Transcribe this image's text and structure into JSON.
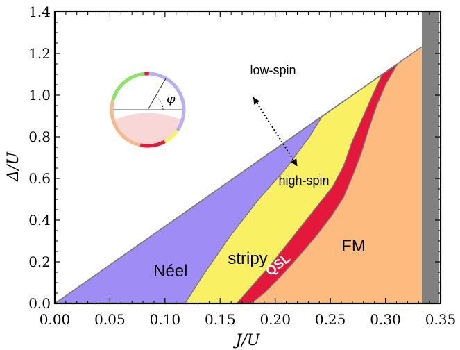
{
  "chart_data": {
    "type": "area",
    "title": "",
    "xlabel": "J/U",
    "ylabel": "Δ/U",
    "xlim": [
      0.0,
      0.35
    ],
    "ylim": [
      0.0,
      1.4
    ],
    "xticks": [
      "0.00",
      "0.05",
      "0.10",
      "0.15",
      "0.20",
      "0.25",
      "0.30",
      "0.35"
    ],
    "yticks": [
      "0.0",
      "0.2",
      "0.4",
      "0.6",
      "0.8",
      "1.0",
      "1.2",
      "1.4"
    ],
    "grid": false,
    "colors": {
      "neel": "#a08cf5",
      "stripy": "#faf064",
      "qsl": "#e3183a",
      "fm": "#fdbb80",
      "excluded": "#808080",
      "boundary": "#7a7a7a",
      "inset_green": "#8de26a",
      "inset_lavender": "#b8b0f0",
      "inset_orange": "#f8b98a",
      "inset_pink_fill": "#fad7d7"
    },
    "regions": [
      {
        "name": "Néel",
        "polygon": [
          [
            0.0,
            0.0
          ],
          [
            0.243,
            0.902
          ],
          [
            0.231,
            0.8
          ],
          [
            0.21,
            0.65
          ],
          [
            0.185,
            0.5
          ],
          [
            0.16,
            0.33
          ],
          [
            0.135,
            0.14
          ],
          [
            0.118,
            0.0
          ]
        ]
      },
      {
        "name": "stripy",
        "polygon": [
          [
            0.118,
            0.0
          ],
          [
            0.135,
            0.14
          ],
          [
            0.16,
            0.33
          ],
          [
            0.185,
            0.5
          ],
          [
            0.21,
            0.65
          ],
          [
            0.231,
            0.8
          ],
          [
            0.243,
            0.902
          ],
          [
            0.297,
            1.1
          ],
          [
            0.29,
            1.02
          ],
          [
            0.28,
            0.9
          ],
          [
            0.27,
            0.78
          ],
          [
            0.262,
            0.66
          ],
          [
            0.252,
            0.56
          ],
          [
            0.24,
            0.48
          ],
          [
            0.225,
            0.38
          ],
          [
            0.21,
            0.28
          ],
          [
            0.195,
            0.18
          ],
          [
            0.18,
            0.09
          ],
          [
            0.165,
            0.0
          ]
        ]
      },
      {
        "name": "QSL",
        "polygon": [
          [
            0.165,
            0.0
          ],
          [
            0.18,
            0.09
          ],
          [
            0.195,
            0.18
          ],
          [
            0.21,
            0.28
          ],
          [
            0.225,
            0.38
          ],
          [
            0.24,
            0.48
          ],
          [
            0.252,
            0.56
          ],
          [
            0.262,
            0.66
          ],
          [
            0.27,
            0.78
          ],
          [
            0.28,
            0.9
          ],
          [
            0.29,
            1.02
          ],
          [
            0.297,
            1.1
          ],
          [
            0.311,
            1.15
          ],
          [
            0.3,
            1.05
          ],
          [
            0.292,
            0.95
          ],
          [
            0.285,
            0.84
          ],
          [
            0.278,
            0.72
          ],
          [
            0.27,
            0.61
          ],
          [
            0.262,
            0.51
          ],
          [
            0.251,
            0.42
          ],
          [
            0.238,
            0.33
          ],
          [
            0.222,
            0.23
          ],
          [
            0.205,
            0.13
          ],
          [
            0.19,
            0.05
          ],
          [
            0.178,
            0.0
          ]
        ]
      },
      {
        "name": "FM",
        "polygon": [
          [
            0.178,
            0.0
          ],
          [
            0.19,
            0.05
          ],
          [
            0.205,
            0.13
          ],
          [
            0.222,
            0.23
          ],
          [
            0.238,
            0.33
          ],
          [
            0.251,
            0.42
          ],
          [
            0.262,
            0.51
          ],
          [
            0.27,
            0.61
          ],
          [
            0.278,
            0.72
          ],
          [
            0.285,
            0.84
          ],
          [
            0.292,
            0.95
          ],
          [
            0.3,
            1.05
          ],
          [
            0.311,
            1.15
          ],
          [
            0.333,
            1.233
          ],
          [
            0.333,
            0.0
          ]
        ]
      }
    ],
    "excluded_band": [
      0.333,
      0.35
    ],
    "upper_boundary": [
      [
        0.0,
        0.0
      ],
      [
        0.333,
        1.233
      ]
    ],
    "annotations": [
      {
        "text": "Néel",
        "x": 0.105,
        "y": 0.13
      },
      {
        "text": "stripy",
        "x": 0.175,
        "y": 0.19
      },
      {
        "text": "QSL",
        "x": 0.205,
        "y": 0.17
      },
      {
        "text": "FM",
        "x": 0.271,
        "y": 0.25
      },
      {
        "text": "low-spin",
        "x": 0.198,
        "y": 1.1
      },
      {
        "text": "high-spin",
        "x": 0.226,
        "y": 0.57
      }
    ],
    "arrow": {
      "from": [
        0.18,
        0.99
      ],
      "to": [
        0.22,
        0.66
      ],
      "style": "dotted-double"
    },
    "inset": {
      "type": "circle-diagram",
      "angle_label": "φ"
    }
  }
}
